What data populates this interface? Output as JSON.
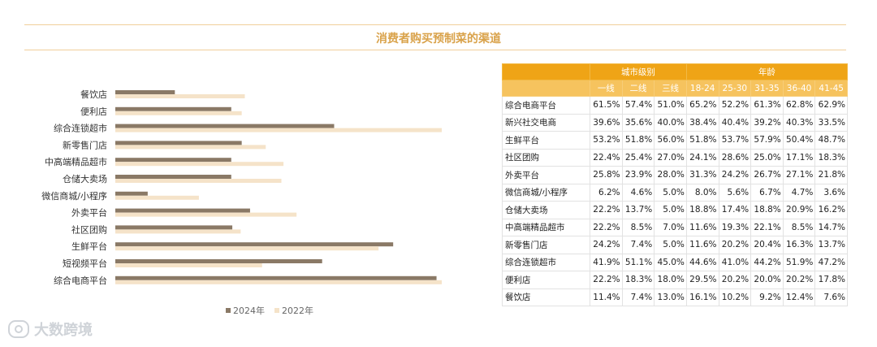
{
  "title": "消费者购买预制菜的渠道",
  "chart_data": {
    "type": "bar",
    "orientation": "horizontal",
    "categories": [
      "餐饮店",
      "便利店",
      "综合连锁超市",
      "新零售门店",
      "中高端精品超市",
      "仓储大卖场",
      "微信商城/小程序",
      "外卖平台",
      "社区团购",
      "生鲜平台",
      "短视频平台",
      "综合电商平台"
    ],
    "series": [
      {
        "name": "2024年",
        "color": "#8a7966",
        "values": [
          11.4,
          22.2,
          41.9,
          24.2,
          22.2,
          22.2,
          6.2,
          25.8,
          22.4,
          53.2,
          39.6,
          61.5
        ]
      },
      {
        "name": "2022年",
        "color": "#f5e3c9",
        "values": [
          24.8,
          24.2,
          62.5,
          28.8,
          32.2,
          31.8,
          16.0,
          34.7,
          24.0,
          50.4,
          28.1,
          62.5
        ]
      }
    ],
    "xlim": [
      0,
      70
    ],
    "grid": false,
    "legend_position": "bottom"
  },
  "legend": [
    {
      "label": "2024年",
      "color": "#8a7966"
    },
    {
      "label": "2022年",
      "color": "#f5e3c9"
    }
  ],
  "table": {
    "group_headers": [
      {
        "label": "",
        "span": 1
      },
      {
        "label": "城市级别",
        "span": 3
      },
      {
        "label": "年龄",
        "span": 5
      }
    ],
    "columns": [
      "",
      "一线",
      "二线",
      "三线",
      "18-24",
      "25-30",
      "31-35",
      "36-40",
      "41-45"
    ],
    "rows": [
      {
        "label": "综合电商平台",
        "values": [
          "61.5%",
          "57.4%",
          "51.0%",
          "65.2%",
          "52.2%",
          "61.3%",
          "62.8%",
          "62.9%"
        ]
      },
      {
        "label": "新兴社交电商",
        "values": [
          "39.6%",
          "35.6%",
          "40.0%",
          "38.4%",
          "40.4%",
          "39.2%",
          "40.3%",
          "33.5%"
        ]
      },
      {
        "label": "生鲜平台",
        "values": [
          "53.2%",
          "51.8%",
          "56.0%",
          "51.8%",
          "53.7%",
          "57.9%",
          "50.4%",
          "48.7%"
        ]
      },
      {
        "label": "社区团购",
        "values": [
          "22.4%",
          "25.4%",
          "27.0%",
          "24.1%",
          "28.6%",
          "25.0%",
          "17.1%",
          "18.3%"
        ]
      },
      {
        "label": "外卖平台",
        "values": [
          "25.8%",
          "23.9%",
          "28.0%",
          "31.3%",
          "24.2%",
          "26.7%",
          "27.1%",
          "21.8%"
        ]
      },
      {
        "label": "微信商城/小程序",
        "values": [
          "6.2%",
          "4.6%",
          "5.0%",
          "8.0%",
          "5.6%",
          "6.7%",
          "4.7%",
          "3.6%"
        ]
      },
      {
        "label": "仓储大卖场",
        "values": [
          "22.2%",
          "13.7%",
          "5.0%",
          "18.8%",
          "17.4%",
          "18.8%",
          "20.9%",
          "16.2%"
        ]
      },
      {
        "label": "中高端精品超市",
        "values": [
          "22.2%",
          "8.5%",
          "7.0%",
          "11.6%",
          "19.3%",
          "22.1%",
          "8.5%",
          "14.7%"
        ]
      },
      {
        "label": "新零售门店",
        "values": [
          "24.2%",
          "7.4%",
          "5.0%",
          "11.6%",
          "20.2%",
          "20.4%",
          "16.3%",
          "13.7%"
        ]
      },
      {
        "label": "综合连锁超市",
        "values": [
          "41.9%",
          "51.1%",
          "45.0%",
          "44.6%",
          "41.0%",
          "44.2%",
          "51.9%",
          "47.2%"
        ]
      },
      {
        "label": "便利店",
        "values": [
          "22.2%",
          "18.3%",
          "18.0%",
          "29.5%",
          "20.2%",
          "20.0%",
          "20.2%",
          "17.8%"
        ]
      },
      {
        "label": "餐饮店",
        "values": [
          "11.4%",
          "7.4%",
          "13.0%",
          "16.1%",
          "10.2%",
          "9.2%",
          "12.4%",
          "7.6%"
        ]
      }
    ]
  },
  "watermark": "大数跨境"
}
